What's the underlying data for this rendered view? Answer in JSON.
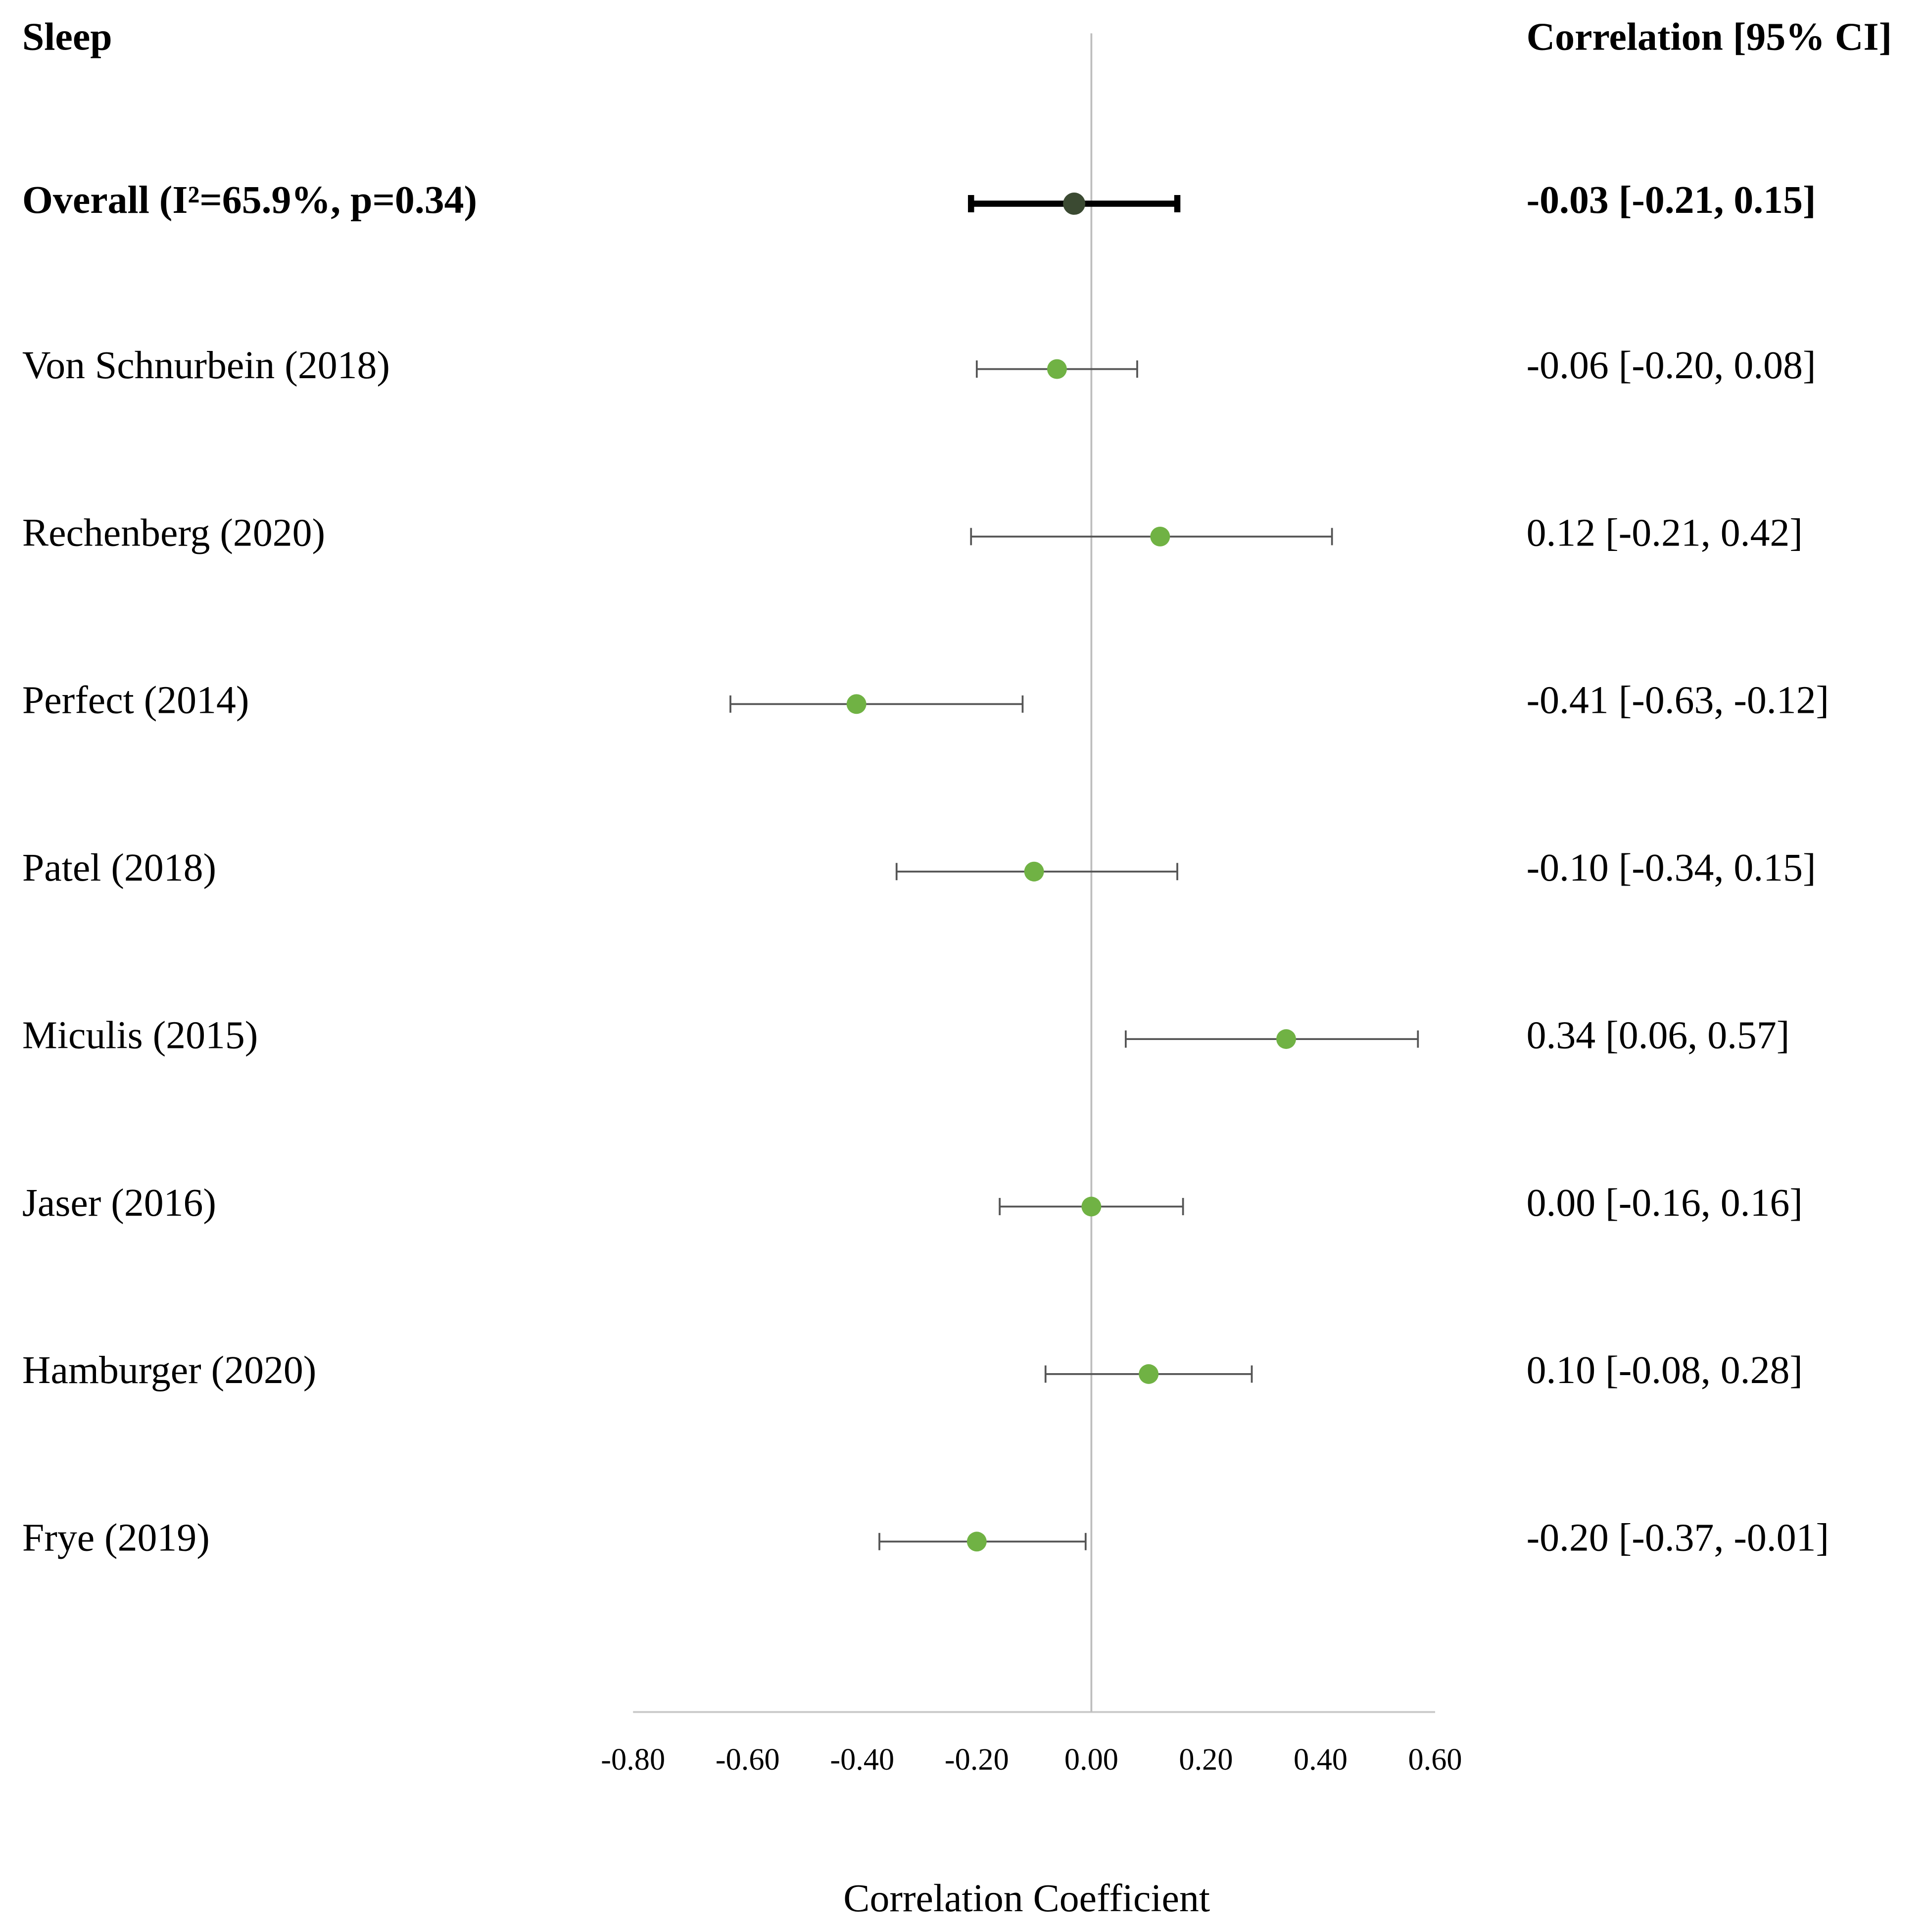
{
  "chart_data": {
    "type": "forest",
    "title": "Sleep",
    "right_header": "Correlation [95% CI]",
    "x_label": "Correlation Coefficient",
    "xlim": [
      -0.8,
      0.6
    ],
    "xticks": [
      {
        "value": -0.8,
        "label": "-0.80"
      },
      {
        "value": -0.6,
        "label": "-0.60"
      },
      {
        "value": -0.4,
        "label": "-0.40"
      },
      {
        "value": -0.2,
        "label": "-0.20"
      },
      {
        "value": 0,
        "label": "0.00"
      },
      {
        "value": 0.2,
        "label": "0.20"
      },
      {
        "value": 0.4,
        "label": "0.40"
      },
      {
        "value": 0.6,
        "label": "0.60"
      }
    ],
    "overall": {
      "label": "Overall (I²=65.9%, p=0.34)",
      "value": -0.03,
      "lower": -0.21,
      "upper": 0.15,
      "value_label": "-0.03 [-0.21, 0.15]",
      "color": "#3b4a32",
      "whisker_color": "#000000"
    },
    "categories": [
      "Von Schnurbein (2018)",
      "Rechenberg (2020)",
      "Perfect (2014)",
      "Patel (2018)",
      "Miculis (2015)",
      "Jaser (2016)",
      "Hamburger (2020)",
      "Frye (2019)"
    ],
    "values": [
      -0.06,
      0.12,
      -0.41,
      -0.1,
      0.34,
      0.0,
      0.1,
      -0.2
    ],
    "lower": [
      -0.2,
      -0.21,
      -0.63,
      -0.34,
      0.06,
      -0.16,
      -0.08,
      -0.37
    ],
    "upper": [
      0.08,
      0.42,
      -0.12,
      0.15,
      0.57,
      0.16,
      0.28,
      -0.01
    ],
    "value_labels": [
      "-0.06 [-0.20, 0.08]",
      "0.12 [-0.21, 0.42]",
      "-0.41 [-0.63, -0.12]",
      "-0.10 [-0.34, 0.15]",
      "0.34 [0.06, 0.57]",
      "0.00 [-0.16, 0.16]",
      "0.10 [-0.08, 0.28]",
      "-0.20 [-0.37, -0.01]"
    ],
    "color": "#70b244",
    "whisker_color": "#555555"
  }
}
